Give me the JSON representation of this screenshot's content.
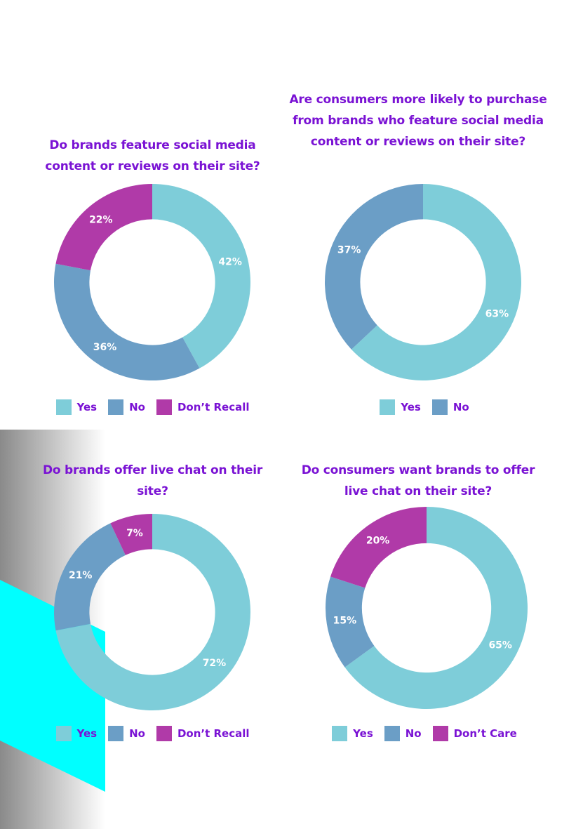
{
  "colors": {
    "yes": "#7ecdd9",
    "no": "#6b9ec6",
    "other": "#b03aa8",
    "title": "#7a12d4",
    "label": "#ffffff"
  },
  "chart_data": [
    {
      "type": "pie",
      "title": "Do brands feature social media content or reviews on their site?",
      "categories": [
        "Yes",
        "No",
        "Don’t Recall"
      ],
      "values": [
        42,
        36,
        22
      ],
      "labels": [
        "42%",
        "36%",
        "22%"
      ],
      "legend": "bottom"
    },
    {
      "type": "pie",
      "title": "Are consumers more likely to purchase from brands who feature social media content or reviews on their site?",
      "categories": [
        "Yes",
        "No"
      ],
      "values": [
        63,
        37
      ],
      "labels": [
        "63%",
        "37%"
      ],
      "legend": "bottom"
    },
    {
      "type": "pie",
      "title": "Do brands offer live chat on their site?",
      "categories": [
        "Yes",
        "No",
        "Don’t Recall"
      ],
      "values": [
        72,
        21,
        7
      ],
      "labels": [
        "72%",
        "21%",
        "7%"
      ],
      "legend": "bottom"
    },
    {
      "type": "pie",
      "title": "Do consumers want brands to offer live chat on their site?",
      "categories": [
        "Yes",
        "No",
        "Don’t Care"
      ],
      "values": [
        65,
        15,
        20
      ],
      "labels": [
        "65%",
        "15%",
        "20%"
      ],
      "legend": "bottom"
    }
  ]
}
